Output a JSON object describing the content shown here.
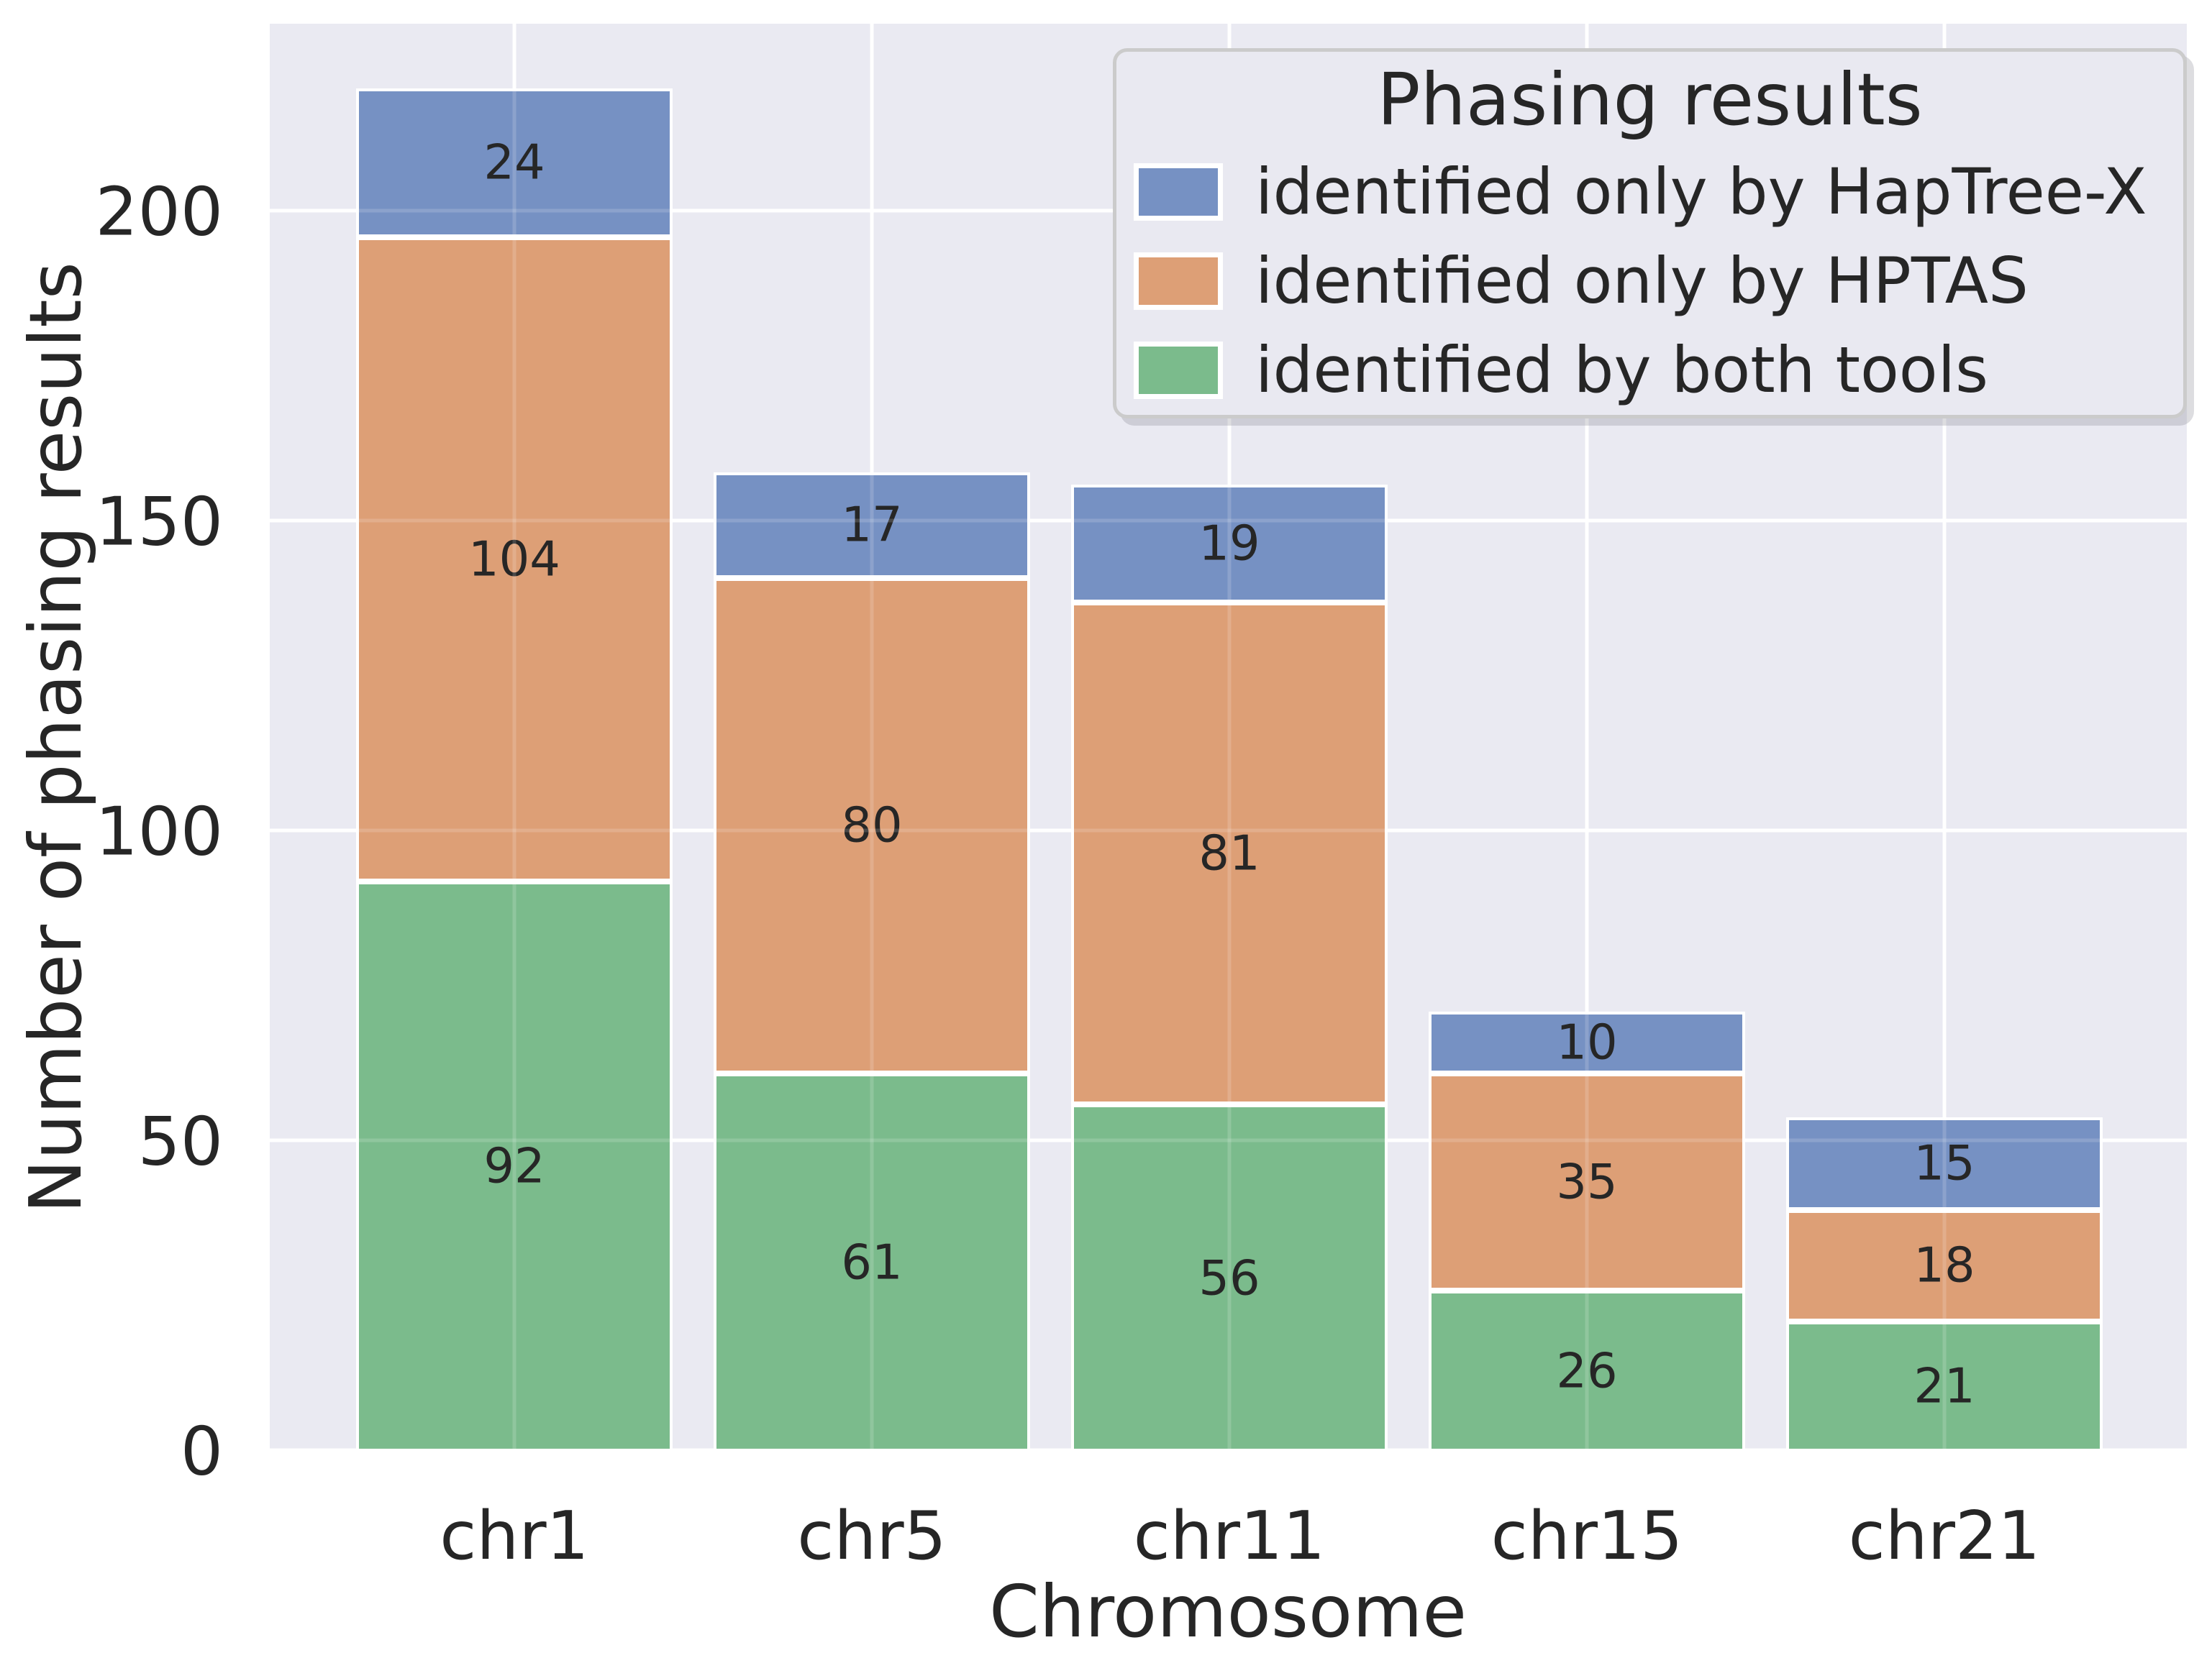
{
  "figure": {
    "background": "#ffffff",
    "plot_background": "#eaeaf2",
    "gridline_color": "#ffffff",
    "text_color": "#262626"
  },
  "chart_data": {
    "type": "bar",
    "stacked": true,
    "title": "",
    "xlabel": "Chromosome",
    "ylabel": "Number of phasing results",
    "categories": [
      "chr1",
      "chr5",
      "chr11",
      "chr15",
      "chr21"
    ],
    "series": [
      {
        "name": "identified by both tools",
        "color": "#7bbb8c",
        "values": [
          92,
          61,
          56,
          26,
          21
        ]
      },
      {
        "name": "identified only by HPTAS",
        "color": "#dd9f76",
        "values": [
          104,
          80,
          81,
          35,
          18
        ]
      },
      {
        "name": "identified only by HapTree-X",
        "color": "#7691c3",
        "values": [
          24,
          17,
          19,
          10,
          15
        ]
      }
    ],
    "totals": [
      220,
      158,
      156,
      71,
      54
    ],
    "yticks": [
      0,
      50,
      100,
      150,
      200
    ],
    "ylim": [
      0,
      230.4
    ],
    "grid": true,
    "legend": {
      "title": "Phasing results",
      "position": "upper right",
      "items": [
        {
          "label": "identified only by HapTree-X",
          "color": "#7691c3"
        },
        {
          "label": "identified only by HPTAS",
          "color": "#dd9f76"
        },
        {
          "label": "identified by both tools",
          "color": "#7bbb8c"
        }
      ]
    }
  }
}
